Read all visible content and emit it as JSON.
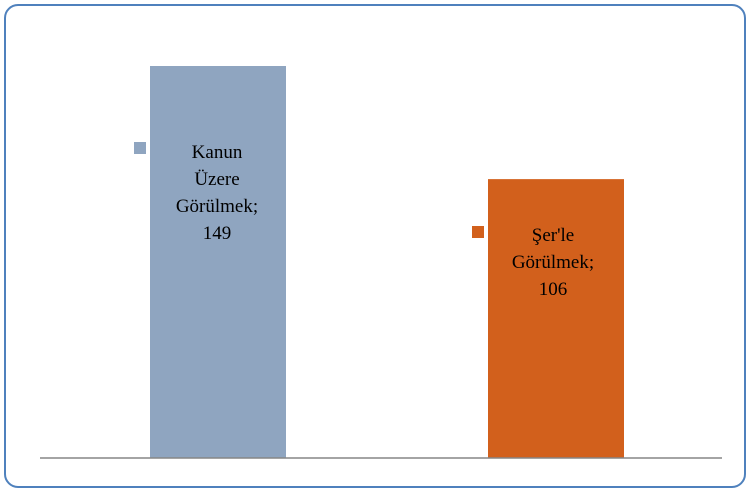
{
  "chart_data": {
    "type": "bar",
    "categories": [
      "Kanun Üzere Görülmek",
      "Şer'le Görülmek"
    ],
    "values": [
      149,
      106
    ],
    "data_labels": [
      [
        "Kanun",
        "Üzere",
        "Görülmek;",
        "149"
      ],
      [
        "Şer'le",
        "Görülmek;",
        "106"
      ]
    ],
    "colors": [
      "#8fa5c0",
      "#d2601c"
    ],
    "ylim": [
      0,
      149
    ],
    "grid": false,
    "legend": "none",
    "title": "",
    "xlabel": "",
    "ylabel": ""
  },
  "frame": {
    "border_color": "#4f81bd",
    "axis_color": "#868686"
  }
}
